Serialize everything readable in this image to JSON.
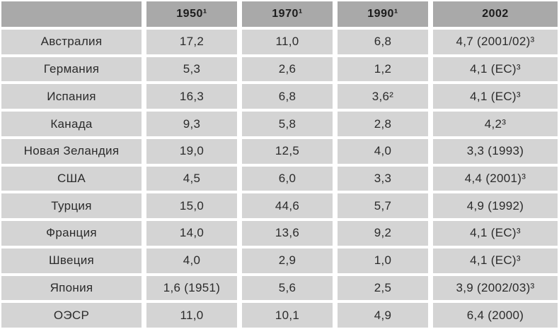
{
  "table": {
    "description_colors": {
      "header_bg": "#a9a9a9",
      "row_bg": "#d4d4d4",
      "gutter": "#ffffff",
      "text": "#2b2b2b"
    },
    "columns": [
      "",
      "1950¹",
      "1970¹",
      "1990¹",
      "2002"
    ],
    "rows": [
      {
        "name": "Австралия",
        "values": [
          "17,2",
          "11,0",
          "6,8",
          "4,7 (2001/02)³"
        ]
      },
      {
        "name": "Германия",
        "values": [
          "5,3",
          "2,6",
          "1,2",
          "4,1 (ЕС)³"
        ]
      },
      {
        "name": "Испания",
        "values": [
          "16,3",
          "6,8",
          "3,6²",
          "4,1 (ЕС)³"
        ]
      },
      {
        "name": "Канада",
        "values": [
          "9,3",
          "5,8",
          "2,8",
          "4,2³"
        ]
      },
      {
        "name": "Новая Зеландия",
        "values": [
          "19,0",
          "12,5",
          "4,0",
          "3,3 (1993)"
        ]
      },
      {
        "name": "США",
        "values": [
          "4,5",
          "6,0",
          "3,3",
          "4,4 (2001)³"
        ]
      },
      {
        "name": "Турция",
        "values": [
          "15,0",
          "44,6",
          "5,7",
          "4,9 (1992)"
        ]
      },
      {
        "name": "Франция",
        "values": [
          "14,0",
          "13,6",
          "9,2",
          "4,1 (ЕС)³"
        ]
      },
      {
        "name": "Швеция",
        "values": [
          "4,0",
          "2,9",
          "1,0",
          "4,1 (ЕС)³"
        ]
      },
      {
        "name": "Япония",
        "values": [
          "1,6 (1951)",
          "5,6",
          "2,5",
          "3,9 (2002/03)³"
        ]
      },
      {
        "name": "ОЭСР",
        "values": [
          "11,0",
          "10,1",
          "4,9",
          "6,4 (2000)"
        ]
      }
    ]
  }
}
